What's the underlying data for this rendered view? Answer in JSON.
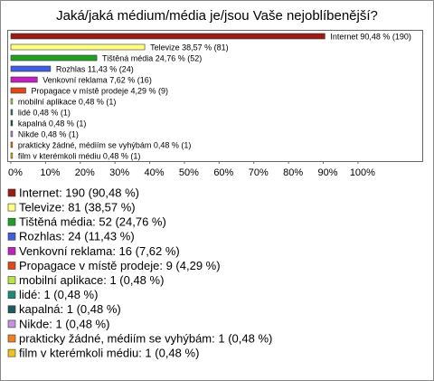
{
  "chart_data": {
    "type": "bar",
    "orientation": "horizontal",
    "title": "Jaká/jaká médium/média je/jsou Vaše nejoblíbenější?",
    "categories": [
      "Internet",
      "Televize",
      "Tištěná média",
      "Rozhlas",
      "Venkovní reklama",
      "Propagace v místě prodeje",
      "mobilní aplikace",
      "lidé",
      "kapalná",
      "Nikde",
      "prakticky žádné, médiím se vyhýbám",
      "film v kterémkoli médiu"
    ],
    "values": [
      90.48,
      38.57,
      24.76,
      11.43,
      7.62,
      4.29,
      0.48,
      0.48,
      0.48,
      0.48,
      0.48,
      0.48
    ],
    "value_labels": [
      "Internet 90,48 % (190)",
      "Televize 38,57 % (81)",
      "Tištěná média 24,76 % (52)",
      "Rozhlas 11,43 % (24)",
      "Venkovní reklama 7,62 % (16)",
      "Propagace v místě prodeje 4,29 % (9)",
      "mobilní aplikace 0,48 % (1)",
      "lidé 0,48 % (1)",
      "kapalná 0,48 % (1)",
      "Nikde 0,48 % (1)",
      "prakticky žádné, médiím se vyhýbám 0,48 % (1)",
      "film v kterémkoli médiu 0,48 % (1)"
    ],
    "legend": [
      "Internet: 190 (90,48 %)",
      "Televize: 81 (38,57 %)",
      "Tištěná média: 52 (24,76 %)",
      "Rozhlas: 24 (11,43 %)",
      "Venkovní reklama: 16 (7,62 %)",
      "Propagace v místě prodeje: 9 (4,29 %)",
      "mobilní aplikace: 1 (0,48 %)",
      "lidé: 1 (0,48 %)",
      "kapalná: 1 (0,48 %)",
      "Nikde: 1 (0,48 %)",
      "prakticky žádné, médiím se vyhýbám: 1 (0,48 %)",
      "film v kterémkoli médiu: 1 (0,48 %)"
    ],
    "colors": [
      "#9b1c10",
      "#ffff80",
      "#22a022",
      "#3f5fe0",
      "#c020c0",
      "#e04818",
      "#b8e448",
      "#1c8a7a",
      "#1a5a66",
      "#c890e0",
      "#f08020",
      "#f0c020"
    ],
    "xlim": [
      0,
      118
    ],
    "xticks": [
      {
        "value": 0,
        "label": "0%"
      },
      {
        "value": 10,
        "label": "10%"
      },
      {
        "value": 20,
        "label": "20%"
      },
      {
        "value": 30,
        "label": "30%"
      },
      {
        "value": 40,
        "label": "40%"
      },
      {
        "value": 50,
        "label": "50%"
      },
      {
        "value": 60,
        "label": "60%"
      },
      {
        "value": 70,
        "label": "70%"
      },
      {
        "value": 80,
        "label": "80%"
      },
      {
        "value": 90,
        "label": "90%"
      },
      {
        "value": 100,
        "label": "100%"
      }
    ]
  }
}
